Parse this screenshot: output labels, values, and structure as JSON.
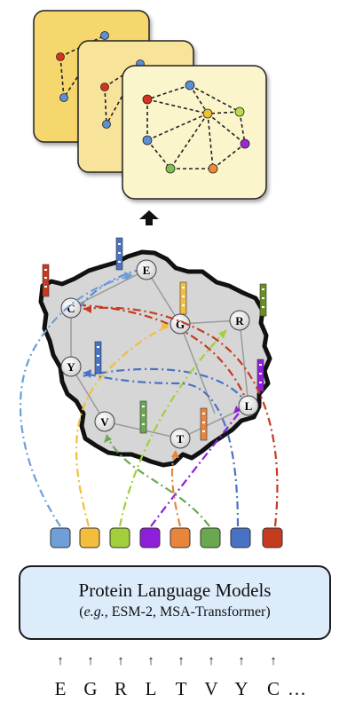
{
  "model_box": {
    "title": "Protein Language Models",
    "subtitle_prefix": "e.g.,",
    "subtitle_rest": " ESM-2, MSA-Transformer)"
  },
  "sequence": {
    "letters": [
      "E",
      "G",
      "R",
      "L",
      "T",
      "V",
      "Y",
      "C"
    ],
    "ellipsis": "…"
  },
  "graph_nodes": [
    {
      "label": "E"
    },
    {
      "label": "C"
    },
    {
      "label": "G"
    },
    {
      "label": "R"
    },
    {
      "label": "Y"
    },
    {
      "label": "L"
    },
    {
      "label": "V"
    },
    {
      "label": "T"
    }
  ],
  "embedding_colors": [
    "#6f9fd8",
    "#f2be3c",
    "#a3cf3c",
    "#8e1fd8",
    "#e8853a",
    "#6aa84f",
    "#4a72c4",
    "#c53b20"
  ],
  "card_colors": {
    "back": "#f5d76e",
    "middle": "#f7e49a",
    "front": "#fbf5cc"
  },
  "node_dot_colors": {
    "red": "#d8321e",
    "blue": "#5b8fd6",
    "yellow": "#efc12f",
    "green": "#7fc24b",
    "orange": "#ec8a3a",
    "purple": "#9b27d6",
    "lime": "#b8db4a"
  },
  "icons": {
    "up_arrow": "thick-up-arrow-icon",
    "input_arrow": "small-up-arrow-icon"
  }
}
